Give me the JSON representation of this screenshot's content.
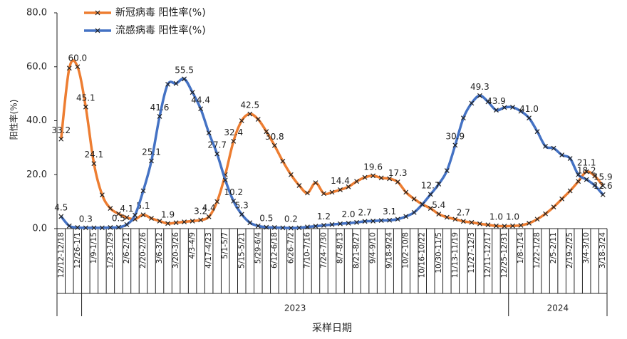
{
  "chart_data": {
    "type": "line",
    "y_label": "阳性率(%)",
    "x_label": "采样日期",
    "categories": [
      "12/12-12/18",
      null,
      "12/26-1/1",
      null,
      "1/9-1/15",
      null,
      "1/23-1/29",
      null,
      "2/6-2/12",
      null,
      "2/20-2/26",
      null,
      "3/6-3/12",
      null,
      "3/20-3/26",
      null,
      "4/3-4/9",
      null,
      "4/17-4/23",
      null,
      "5/1-5/7",
      null,
      "5/15-5/21",
      null,
      "5/29-6/4",
      null,
      "6/12-6/18",
      null,
      "6/26-7/2",
      null,
      "7/10-7/16",
      null,
      "7/24-7/30",
      null,
      "8/7-8/13",
      null,
      "8/21-8/27",
      null,
      "9/4-9/10",
      null,
      "9/18-9/24",
      null,
      "10/2-10/8",
      null,
      "10/16-10/22",
      null,
      "10/30-11/5",
      null,
      "11/13-11/19",
      null,
      "11/27-12/3",
      null,
      "12/11-12/17",
      null,
      "12/25-12/31",
      null,
      "1/8-1/14",
      null,
      "1/22-1/28",
      null,
      "2/5-2/11",
      null,
      "2/19-2/25",
      null,
      "3/4-3/10",
      null,
      "3/18-3/24"
    ],
    "x_groups": [
      {
        "label": "2023",
        "start": 3,
        "end": 54
      },
      {
        "label": "2024",
        "start": 55,
        "end": 66
      }
    ],
    "series": [
      {
        "name": "新冠病毒 阳性率(%)",
        "color": "#ed7d31",
        "values": [
          33.2,
          59.5,
          60.0,
          45.1,
          24.1,
          12.5,
          7.5,
          5.5,
          4.1,
          3.5,
          5.1,
          3.8,
          2.8,
          1.9,
          2.2,
          2.5,
          2.8,
          3.2,
          4.4,
          10,
          20,
          32.4,
          40,
          42.5,
          40.5,
          36,
          30.8,
          25,
          20,
          16,
          13.2,
          17,
          13,
          13.5,
          14.4,
          15.5,
          17.5,
          19,
          19.6,
          18.8,
          18.5,
          17.3,
          13.5,
          11,
          9,
          7.5,
          5.4,
          4.2,
          3.5,
          2.7,
          2.3,
          1.8,
          1.4,
          1.0,
          0.9,
          1.0,
          1.2,
          2,
          3.5,
          5.5,
          8,
          11,
          14,
          17.5,
          21.1,
          19.5,
          15.9
        ],
        "value_labels": [
          "33.2",
          null,
          "60.0",
          "45.1",
          "24.1",
          null,
          null,
          null,
          "4.1",
          null,
          "5.1",
          null,
          null,
          "1.9",
          null,
          null,
          null,
          "3.2",
          "4.4",
          null,
          null,
          "32.4",
          null,
          "42.5",
          null,
          null,
          "30.8",
          null,
          null,
          null,
          null,
          null,
          null,
          null,
          "14.4",
          null,
          null,
          null,
          "19.6",
          null,
          null,
          "17.3",
          null,
          null,
          null,
          null,
          "5.4",
          null,
          null,
          "2.7",
          null,
          null,
          null,
          "1.0",
          null,
          "1.0",
          null,
          null,
          null,
          null,
          null,
          null,
          null,
          null,
          "21.1",
          null,
          "15.9"
        ]
      },
      {
        "name": "流感病毒 阳性率(%)",
        "color": "#4472c4",
        "values": [
          4.5,
          1,
          0.4,
          0.3,
          0.3,
          0.3,
          0.4,
          0.5,
          1.5,
          5,
          14,
          25.1,
          41.6,
          53.5,
          53.8,
          55.5,
          50.5,
          44.4,
          35.5,
          27.7,
          18,
          10.2,
          5.3,
          2.2,
          1.0,
          0.5,
          0.4,
          0.3,
          0.2,
          0.3,
          0.6,
          0.9,
          1.2,
          1.5,
          1.8,
          2.0,
          2.3,
          2.7,
          2.8,
          3.0,
          3.1,
          3.5,
          4.5,
          6,
          9,
          12.7,
          16.5,
          21.5,
          30.9,
          41,
          46.5,
          49.3,
          47,
          43.9,
          44.9,
          45,
          43.5,
          41.0,
          36,
          30.5,
          29.8,
          27.3,
          26,
          20,
          18.2,
          16,
          12.6
        ],
        "value_labels": [
          "4.5",
          null,
          null,
          "0.3",
          null,
          null,
          null,
          "0.5",
          null,
          null,
          null,
          "25.1",
          "41.6",
          null,
          null,
          "55.5",
          null,
          "44.4",
          null,
          "27.7",
          null,
          "10.2",
          "5.3",
          null,
          null,
          "0.5",
          null,
          null,
          "0.2",
          null,
          null,
          null,
          "1.2",
          null,
          null,
          "2.0",
          null,
          "2.7",
          null,
          null,
          "3.1",
          null,
          null,
          null,
          null,
          "12.7",
          null,
          null,
          "30.9",
          null,
          null,
          "49.3",
          null,
          "43.9",
          null,
          null,
          null,
          "41.0",
          null,
          null,
          null,
          null,
          null,
          null,
          "18.2",
          null,
          "12.6"
        ]
      }
    ],
    "ylim": [
      0,
      80
    ],
    "yticks": [
      {
        "value": 0,
        "label": "0.0"
      },
      {
        "value": 20,
        "label": "20.0"
      },
      {
        "value": 40,
        "label": "40.0"
      },
      {
        "value": 60,
        "label": "60.0"
      },
      {
        "value": 80,
        "label": "80.0"
      }
    ],
    "grid": false
  }
}
